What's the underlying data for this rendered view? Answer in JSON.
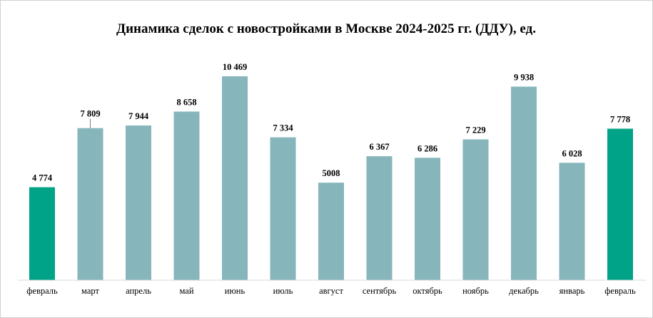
{
  "chart_data": {
    "type": "bar",
    "title": "Динамика сделок с новостройками в Москве 2024-2025 гг. (ДДУ), ед.",
    "xlabel": "",
    "ylabel": "",
    "ylim": [
      0,
      11000
    ],
    "grid": false,
    "legend": "none",
    "categories": [
      "февраль",
      "март",
      "апрель",
      "май",
      "июнь",
      "июль",
      "август",
      "сентябрь",
      "октябрь",
      "ноябрь",
      "декабрь",
      "январь",
      "февраль"
    ],
    "values": [
      4774,
      7809,
      7944,
      8658,
      10469,
      7334,
      5008,
      6367,
      6286,
      7229,
      9938,
      6028,
      7778
    ],
    "data_labels": [
      "4 774",
      "7 809",
      "7 944",
      "8 658",
      "10 469",
      "7 334",
      "5008",
      "6 367",
      "6 286",
      "7 229",
      "9 938",
      "6 028",
      "7 778"
    ],
    "colors": {
      "default": "#86b6bb",
      "highlight": "#00a387",
      "axis": "#d9d9d9",
      "leader": "#7f7f7f"
    },
    "highlighted_indices": [
      0,
      12
    ],
    "leader_line_indices": [
      1
    ]
  }
}
